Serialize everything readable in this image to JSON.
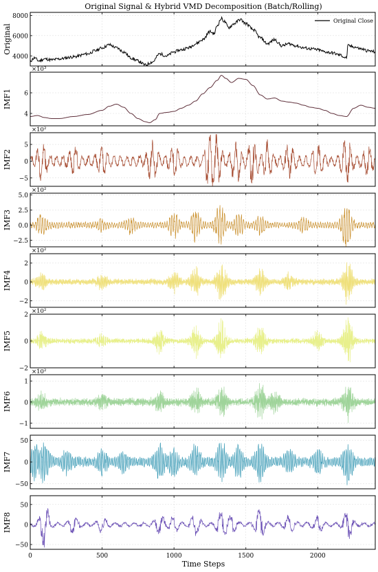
{
  "chart_data": {
    "type": "line",
    "title": "Original Signal & Hybrid VMD Decomposition (Batch/Rolling)",
    "xlabel": "Time Steps",
    "x_ticks": [
      0,
      500,
      1000,
      1500,
      2000
    ],
    "xlim": [
      0,
      2400
    ],
    "legend": {
      "label": "Original Close",
      "placement": "top-right"
    },
    "grid": true,
    "panels": [
      {
        "name": "Original",
        "ylabel": "Original",
        "color": "#000000",
        "ylim": [
          3000,
          8300
        ],
        "yticks": [
          4000,
          6000,
          8000
        ],
        "ytick_labels": [
          "4000",
          "6000",
          "8000"
        ],
        "multiplier": "",
        "knots": [
          [
            0,
            3500
          ],
          [
            30,
            3800
          ],
          [
            60,
            3500
          ],
          [
            100,
            3700
          ],
          [
            150,
            3600
          ],
          [
            200,
            3700
          ],
          [
            300,
            3900
          ],
          [
            400,
            4200
          ],
          [
            450,
            4500
          ],
          [
            500,
            4800
          ],
          [
            550,
            5100
          ],
          [
            600,
            4800
          ],
          [
            650,
            4400
          ],
          [
            700,
            3800
          ],
          [
            750,
            3500
          ],
          [
            800,
            3100
          ],
          [
            850,
            3400
          ],
          [
            900,
            4200
          ],
          [
            950,
            4000
          ],
          [
            1000,
            4400
          ],
          [
            1050,
            4600
          ],
          [
            1100,
            4800
          ],
          [
            1150,
            5200
          ],
          [
            1200,
            5600
          ],
          [
            1250,
            6400
          ],
          [
            1280,
            6200
          ],
          [
            1300,
            7000
          ],
          [
            1330,
            7700
          ],
          [
            1350,
            7400
          ],
          [
            1380,
            6800
          ],
          [
            1420,
            7200
          ],
          [
            1460,
            7600
          ],
          [
            1500,
            7200
          ],
          [
            1550,
            6600
          ],
          [
            1600,
            5800
          ],
          [
            1650,
            5200
          ],
          [
            1700,
            5600
          ],
          [
            1750,
            5000
          ],
          [
            1800,
            5200
          ],
          [
            1850,
            5000
          ],
          [
            1900,
            4800
          ],
          [
            1950,
            4700
          ],
          [
            2000,
            4600
          ],
          [
            2050,
            4400
          ],
          [
            2100,
            4300
          ],
          [
            2150,
            4100
          ],
          [
            2200,
            3800
          ],
          [
            2210,
            5000
          ],
          [
            2250,
            4900
          ],
          [
            2300,
            4700
          ],
          [
            2350,
            4500
          ],
          [
            2400,
            4400
          ]
        ],
        "noise": 150,
        "seed": 11
      },
      {
        "name": "IMF1",
        "ylabel": "IMF1",
        "color": "#5e2f3a",
        "ylim": [
          2.8,
          8.0
        ],
        "yticks": [
          4,
          6
        ],
        "ytick_labels": [
          "4",
          "6"
        ],
        "multiplier": "×10³",
        "knots": [
          [
            0,
            3.7
          ],
          [
            50,
            3.8
          ],
          [
            100,
            3.6
          ],
          [
            150,
            3.5
          ],
          [
            200,
            3.5
          ],
          [
            300,
            3.7
          ],
          [
            400,
            3.9
          ],
          [
            500,
            4.3
          ],
          [
            550,
            4.7
          ],
          [
            600,
            4.9
          ],
          [
            650,
            4.6
          ],
          [
            700,
            4.0
          ],
          [
            750,
            3.5
          ],
          [
            800,
            3.2
          ],
          [
            830,
            3.1
          ],
          [
            870,
            3.4
          ],
          [
            900,
            4.0
          ],
          [
            950,
            4.1
          ],
          [
            1000,
            4.2
          ],
          [
            1050,
            4.5
          ],
          [
            1100,
            4.8
          ],
          [
            1150,
            5.2
          ],
          [
            1200,
            5.9
          ],
          [
            1250,
            6.5
          ],
          [
            1300,
            7.2
          ],
          [
            1330,
            7.7
          ],
          [
            1360,
            7.4
          ],
          [
            1400,
            7.0
          ],
          [
            1450,
            7.4
          ],
          [
            1500,
            7.3
          ],
          [
            1550,
            6.7
          ],
          [
            1600,
            5.8
          ],
          [
            1650,
            5.4
          ],
          [
            1700,
            5.5
          ],
          [
            1750,
            5.2
          ],
          [
            1800,
            5.1
          ],
          [
            1850,
            5.0
          ],
          [
            1900,
            4.8
          ],
          [
            1950,
            4.6
          ],
          [
            2000,
            4.5
          ],
          [
            2050,
            4.3
          ],
          [
            2100,
            4.0
          ],
          [
            2150,
            3.8
          ],
          [
            2200,
            3.7
          ],
          [
            2250,
            4.5
          ],
          [
            2300,
            4.8
          ],
          [
            2350,
            4.6
          ],
          [
            2400,
            4.5
          ]
        ],
        "noise": 0,
        "seed": 12
      },
      {
        "name": "IMF2",
        "ylabel": "IMF2",
        "color": "#a54a2f",
        "ylim": [
          -7.5,
          8.5
        ],
        "yticks": [
          -5,
          0,
          5
        ],
        "ytick_labels": [
          "−5",
          "0",
          "5"
        ],
        "multiplier": "×10²",
        "osc": {
          "freq": 0.045,
          "base": 1.8,
          "bursts": [
            [
              80,
              5
            ],
            [
              300,
              3
            ],
            [
              500,
              3
            ],
            [
              850,
              5
            ],
            [
              1000,
              4
            ],
            [
              1250,
              7
            ],
            [
              1300,
              6
            ],
            [
              1430,
              6
            ],
            [
              1550,
              6
            ],
            [
              1650,
              5
            ],
            [
              1800,
              4
            ],
            [
              2000,
              4
            ],
            [
              2200,
              6
            ],
            [
              2350,
              3
            ]
          ]
        },
        "noise": 0.2,
        "seed": 13
      },
      {
        "name": "IMF3",
        "ylabel": "IMF3",
        "color": "#c98f2c",
        "ylim": [
          -3.6,
          5.3
        ],
        "yticks": [
          -2.5,
          0.0,
          2.5,
          5.0
        ],
        "ytick_labels": [
          "−2.5",
          "0.0",
          "2.5",
          "5.0"
        ],
        "multiplier": "×10²",
        "osc": {
          "freq": 0.12,
          "base": 0.55,
          "bursts": [
            [
              80,
              1.6
            ],
            [
              500,
              0.8
            ],
            [
              700,
              1.2
            ],
            [
              1000,
              2.0
            ],
            [
              1150,
              2.5
            ],
            [
              1320,
              3.6
            ],
            [
              1450,
              2.0
            ],
            [
              1600,
              1.6
            ],
            [
              1900,
              1.0
            ],
            [
              2200,
              4.0
            ]
          ]
        },
        "noise": 0.15,
        "seed": 14
      },
      {
        "name": "IMF4",
        "ylabel": "IMF4",
        "color": "#efe07a",
        "ylim": [
          -2.7,
          3.0
        ],
        "yticks": [
          -2,
          0,
          2
        ],
        "ytick_labels": [
          "−2",
          "0",
          "2"
        ],
        "multiplier": "×10²",
        "osc": {
          "freq": 0.31,
          "base": 0.35,
          "bursts": [
            [
              80,
              0.8
            ],
            [
              500,
              0.7
            ],
            [
              1000,
              1.2
            ],
            [
              1150,
              1.5
            ],
            [
              1330,
              2.2
            ],
            [
              1600,
              1.3
            ],
            [
              1800,
              0.8
            ],
            [
              2210,
              2.4
            ]
          ]
        },
        "noise": 0.1,
        "seed": 15
      },
      {
        "name": "IMF5",
        "ylabel": "IMF5",
        "color": "#e8f08c",
        "ylim": [
          -2.0,
          2.0
        ],
        "yticks": [
          -2,
          0,
          2
        ],
        "ytick_labels": [
          "−2",
          "0",
          "2"
        ],
        "multiplier": "×10²",
        "osc": {
          "freq": 0.43,
          "base": 0.22,
          "bursts": [
            [
              80,
              0.6
            ],
            [
              500,
              0.5
            ],
            [
              900,
              0.9
            ],
            [
              1150,
              1.2
            ],
            [
              1330,
              1.6
            ],
            [
              1600,
              1.2
            ],
            [
              2000,
              0.7
            ],
            [
              2210,
              1.8
            ]
          ]
        },
        "noise": 0.08,
        "seed": 16
      },
      {
        "name": "IMF6",
        "ylabel": "IMF6",
        "color": "#9fd49a",
        "ylim": [
          -1.25,
          1.3
        ],
        "yticks": [
          -1,
          0,
          1
        ],
        "ytick_labels": [
          "−1",
          "0",
          "1"
        ],
        "multiplier": "×10²",
        "osc": {
          "freq": 0.61,
          "base": 0.2,
          "bursts": [
            [
              80,
              0.35
            ],
            [
              500,
              0.3
            ],
            [
              900,
              0.5
            ],
            [
              1150,
              0.6
            ],
            [
              1330,
              0.75
            ],
            [
              1600,
              1.0
            ],
            [
              1700,
              0.5
            ],
            [
              2210,
              0.9
            ]
          ]
        },
        "noise": 0.06,
        "seed": 17
      },
      {
        "name": "IMF7",
        "ylabel": "IMF7",
        "color": "#3a9ab5",
        "ylim": [
          -62,
          62
        ],
        "yticks": [
          -50,
          0,
          50
        ],
        "ytick_labels": [
          "−50",
          "0",
          "50"
        ],
        "multiplier": "",
        "osc": {
          "freq": 0.83,
          "base": 12,
          "bursts": [
            [
              30,
              35
            ],
            [
              100,
              40
            ],
            [
              250,
              22
            ],
            [
              500,
              25
            ],
            [
              650,
              20
            ],
            [
              900,
              35
            ],
            [
              1000,
              30
            ],
            [
              1150,
              35
            ],
            [
              1330,
              45
            ],
            [
              1450,
              30
            ],
            [
              1600,
              40
            ],
            [
              1800,
              25
            ],
            [
              2000,
              25
            ],
            [
              2210,
              45
            ]
          ]
        },
        "noise": 4,
        "seed": 18
      },
      {
        "name": "IMF8",
        "ylabel": "IMF8",
        "color": "#6a4fb5",
        "ylim": [
          -62,
          72
        ],
        "yticks": [
          -50,
          0,
          50
        ],
        "ytick_labels": [
          "−50",
          "0",
          "50"
        ],
        "multiplier": "",
        "osc": {
          "freq": 0.97,
          "base": 6,
          "bursts": [
            [
              100,
              55
            ],
            [
              300,
              20
            ],
            [
              500,
              18
            ],
            [
              900,
              25
            ],
            [
              1000,
              20
            ],
            [
              1150,
              25
            ],
            [
              1330,
              30
            ],
            [
              1400,
              20
            ],
            [
              1600,
              40
            ],
            [
              1800,
              20
            ],
            [
              2000,
              20
            ],
            [
              2210,
              35
            ]
          ]
        },
        "noise": 3,
        "seed": 19
      }
    ]
  }
}
